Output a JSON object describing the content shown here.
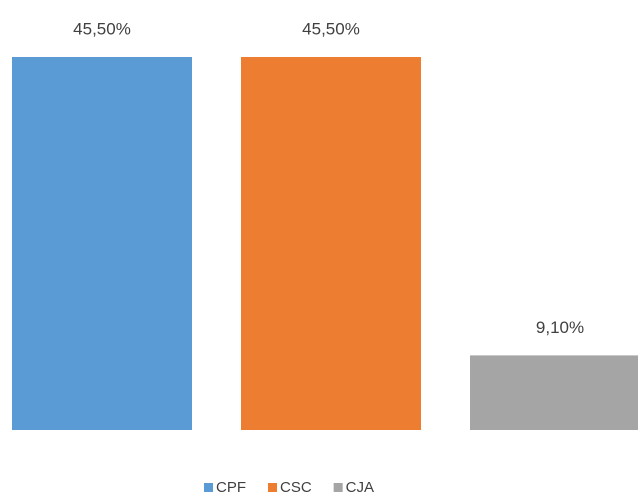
{
  "chart_data": {
    "type": "bar",
    "categories": [
      null
    ],
    "series": [
      {
        "name": "CPF",
        "color": "#5b9bd5",
        "values": [
          45.5
        ],
        "value_labels": [
          "45,50%"
        ]
      },
      {
        "name": "CSC",
        "color": "#ed7d31",
        "values": [
          45.5
        ],
        "value_labels": [
          "45,50%"
        ]
      },
      {
        "name": "CJA",
        "color": "#a5a5a5",
        "values": [
          9.1
        ],
        "value_labels": [
          "9,10%"
        ]
      }
    ],
    "legend": "bottom"
  }
}
